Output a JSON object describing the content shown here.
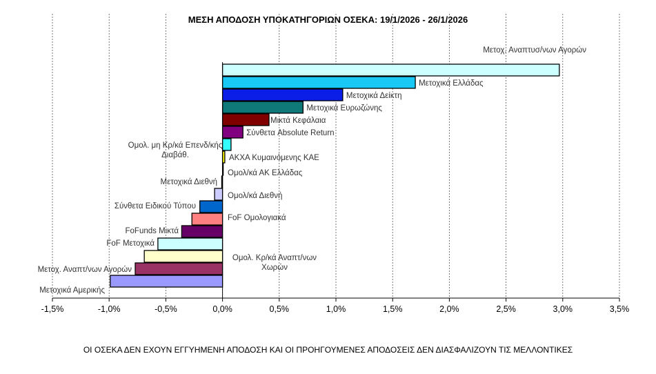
{
  "chart_data": {
    "type": "bar",
    "orientation": "horizontal",
    "title": "ΜΕΣΗ ΑΠΟΔΟΣΗ ΥΠΟΚΑΤΗΓΟΡΙΩΝ ΟΣΕΚΑ: 19/1/2026 - 26/1/2026",
    "xlabel": "",
    "ylabel": "",
    "xlim": [
      -1.5,
      3.5
    ],
    "x_ticks": [
      -1.5,
      -1.0,
      -0.5,
      0.0,
      0.5,
      1.0,
      1.5,
      2.0,
      2.5,
      3.0,
      3.5
    ],
    "x_tick_labels": [
      "-1,5%",
      "-1,0%",
      "-0,5%",
      "0,0%",
      "0,5%",
      "1,0%",
      "1,5%",
      "2,0%",
      "2,5%",
      "3,0%",
      "3,5%"
    ],
    "grid": "vertical dashed",
    "categories": [
      "Μετοχ. Αναπτυσ/νων Αγορών",
      "Μετοχικά Ελλάδας",
      "Μετοχικά Δείκτη",
      "Μετοχικά Ευρωζώνης",
      "Μικτά Κεφάλαια",
      "Σύνθετα Absolute Return",
      "Ομολ. μη Κρ/κά Επενδ/κής Διαβάθ.",
      "ΑΚΧΑ Κυμαινόμενης ΚΑΕ",
      "Ομολ/κά ΑΚ Ελλάδας",
      "Μετοχικά Διεθνή",
      "Ομολ/κά Διεθνή",
      "Σύνθετα Ειδικού Τύπου",
      "FoF Ομολογιακά",
      "FoFunds Μικτά",
      "FoF Μετοχικά",
      "Ομολ. Κρ/κά Αναπτ/νων Χωρών",
      "Μετοχ. Αναπτ/νων Αγορών",
      "Μετοχικά Αμερικής"
    ],
    "values": [
      2.97,
      1.7,
      1.06,
      0.71,
      0.41,
      0.18,
      0.075,
      0.02,
      0.005,
      -0.007,
      -0.07,
      -0.2,
      -0.27,
      -0.36,
      -0.57,
      -0.69,
      -0.77,
      -0.99
    ],
    "colors": [
      "#ccffff",
      "#1ac8f5",
      "#0a1ee8",
      "#0f7878",
      "#800000",
      "#800080",
      "#33ffff",
      "#ffff00",
      "#ffffff",
      "#ffffff",
      "#ccccff",
      "#0066cc",
      "#ff8080",
      "#660066",
      "#ccffff",
      "#ffffcc",
      "#993366",
      "#9999ff"
    ],
    "unit": "%"
  },
  "footer": "ΟΙ ΟΣΕΚΑ ΔΕΝ  ΕΧΟΥΝ ΕΓΓΥΗΜΕΝΗ ΑΠΟΔΟΣΗ ΚΑΙ ΟΙ ΠΡΟΗΓΟΥΜΕΝΕΣ ΑΠΟΔΟΣΕΙΣ ΔΕΝ ΔΙΑΣΦΑΛΙΖΟΥΝ ΤΙΣ ΜΕΛΛΟΝΤΙΚΕΣ"
}
